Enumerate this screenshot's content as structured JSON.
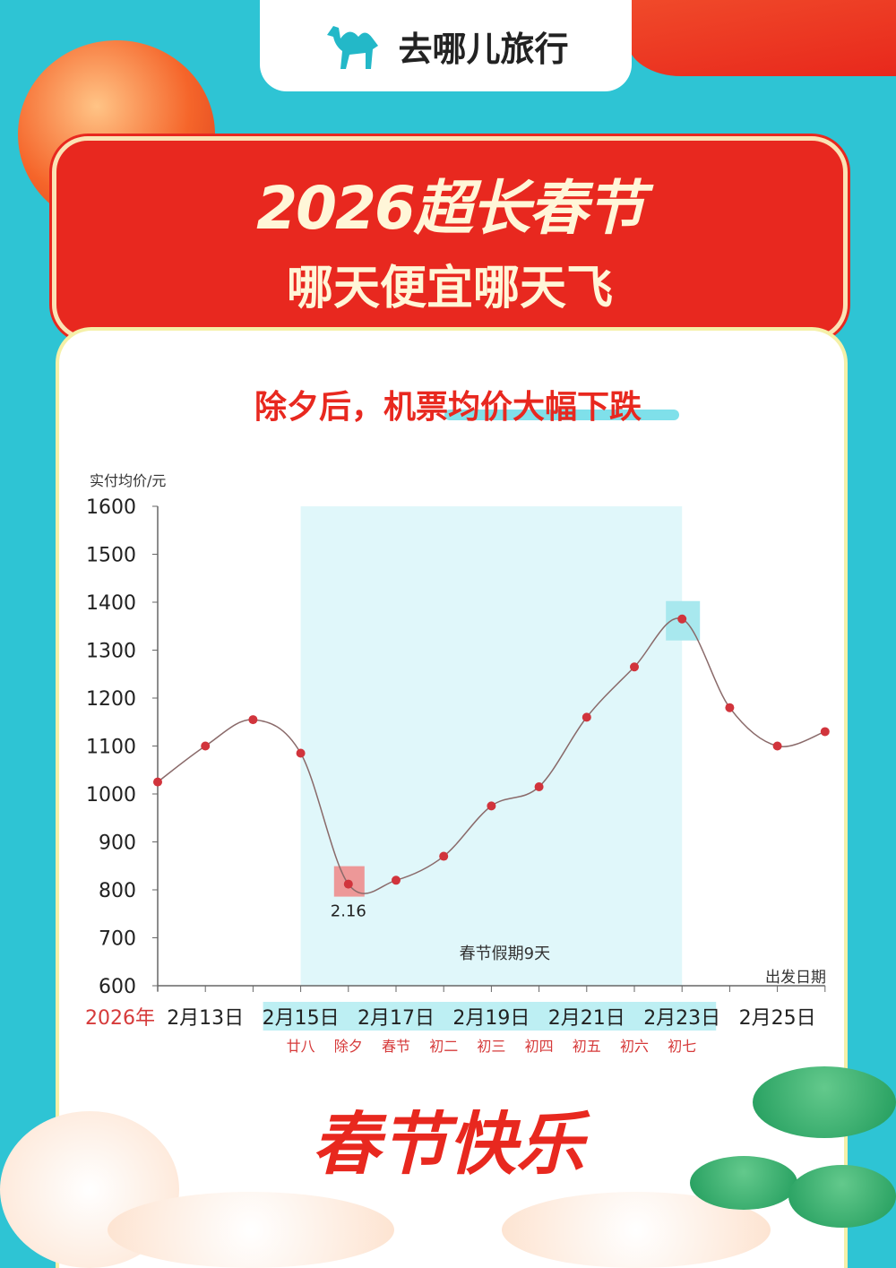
{
  "brand": {
    "name": "去哪儿旅行",
    "icon": "camel-logo-icon",
    "color": "#23b8c8"
  },
  "banner": {
    "title": "2026超长春节",
    "subtitle": "哪天便宜哪天飞"
  },
  "headline": "除夕后，机票均价大幅下跌",
  "footer": "春节快乐",
  "colors": {
    "background": "#2ec4d4",
    "accent": "#e8281f",
    "holiday_band": "#e0f7fa",
    "line": "#8a6a6a",
    "point": "#d1343c"
  },
  "chart_data": {
    "type": "line",
    "ylabel": "实付均价/元",
    "xlabel": "出发日期",
    "ylim": [
      600,
      1600
    ],
    "yticks": [
      "1600",
      "1500",
      "1400",
      "1300",
      "1200",
      "1100",
      "1000",
      "900",
      "800",
      "700",
      "600"
    ],
    "year_label": "2026年",
    "x": [
      "2月12日",
      "2月13日",
      "2月14日",
      "2月15日",
      "2月16日",
      "2月17日",
      "2月18日",
      "2月19日",
      "2月20日",
      "2月21日",
      "2月22日",
      "2月23日",
      "2月24日",
      "2月25日",
      "2月26日"
    ],
    "xtick_labels": [
      "2月13日",
      "2月15日",
      "2月17日",
      "2月19日",
      "2月21日",
      "2月23日",
      "2月25日"
    ],
    "lunar_labels": [
      "廿八",
      "除夕",
      "春节",
      "初二",
      "初三",
      "初四",
      "初五",
      "初六",
      "初七"
    ],
    "values": [
      1025,
      1100,
      1155,
      1085,
      812,
      820,
      870,
      975,
      1015,
      1160,
      1265,
      1365,
      1180,
      1100,
      1130
    ],
    "holiday": {
      "start": "2月15日",
      "end": "2月23日",
      "label": "春节假期9天"
    },
    "min_annotation": {
      "x": "2月16日",
      "label": "2.16"
    },
    "max_highlight": {
      "x": "2月23日"
    },
    "grid": false
  }
}
